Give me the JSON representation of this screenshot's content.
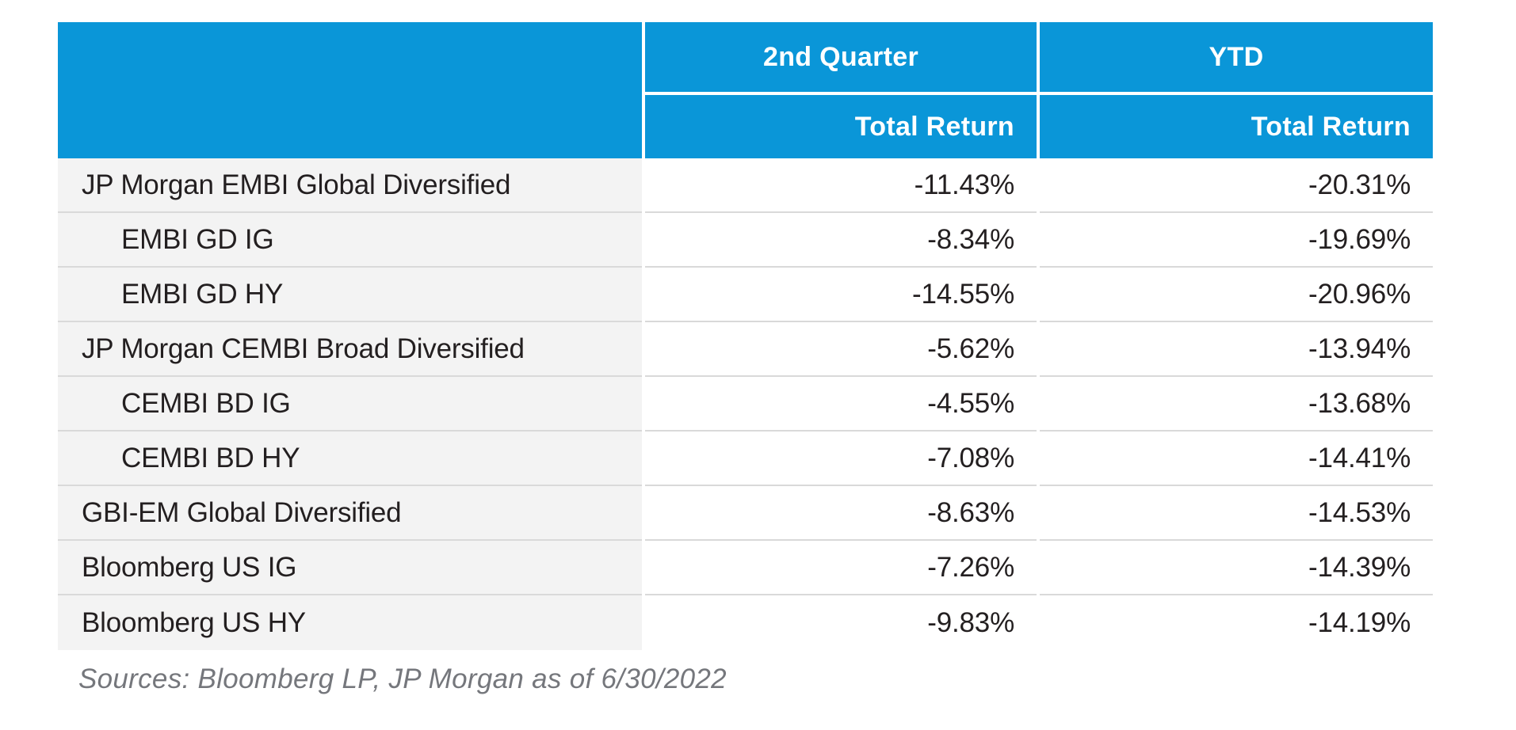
{
  "chart_data": {
    "type": "table",
    "column_groups": [
      "2nd Quarter",
      "YTD"
    ],
    "sub_headers": [
      "Total Return",
      "Total Return"
    ],
    "rows": [
      {
        "label": "JP Morgan EMBI Global Diversified",
        "indent": false,
        "q2_total_return": "-11.43%",
        "ytd_total_return": "-20.31%",
        "q2_value": -11.43,
        "ytd_value": -20.31
      },
      {
        "label": "EMBI GD IG",
        "indent": true,
        "q2_total_return": "-8.34%",
        "ytd_total_return": "-19.69%",
        "q2_value": -8.34,
        "ytd_value": -19.69
      },
      {
        "label": "EMBI GD HY",
        "indent": true,
        "q2_total_return": "-14.55%",
        "ytd_total_return": "-20.96%",
        "q2_value": -14.55,
        "ytd_value": -20.96
      },
      {
        "label": "JP Morgan CEMBI Broad Diversified",
        "indent": false,
        "q2_total_return": "-5.62%",
        "ytd_total_return": "-13.94%",
        "q2_value": -5.62,
        "ytd_value": -13.94
      },
      {
        "label": "CEMBI BD IG",
        "indent": true,
        "q2_total_return": "-4.55%",
        "ytd_total_return": "-13.68%",
        "q2_value": -4.55,
        "ytd_value": -13.68
      },
      {
        "label": "CEMBI BD HY",
        "indent": true,
        "q2_total_return": "-7.08%",
        "ytd_total_return": "-14.41%",
        "q2_value": -7.08,
        "ytd_value": -14.41
      },
      {
        "label": "GBI-EM Global Diversified",
        "indent": false,
        "q2_total_return": "-8.63%",
        "ytd_total_return": "-14.53%",
        "q2_value": -8.63,
        "ytd_value": -14.53
      },
      {
        "label": "Bloomberg US IG",
        "indent": false,
        "q2_total_return": "-7.26%",
        "ytd_total_return": "-14.39%",
        "q2_value": -7.26,
        "ytd_value": -14.39
      },
      {
        "label": "Bloomberg US HY",
        "indent": false,
        "q2_total_return": "-9.83%",
        "ytd_total_return": "-14.19%",
        "q2_value": -9.83,
        "ytd_value": -14.19
      }
    ],
    "source_note": "Sources: Bloomberg LP, JP Morgan as of 6/30/2022",
    "legend_position": "none",
    "grid": "horizontal-row-dividers"
  },
  "colors": {
    "header_blue": "#0a96d8",
    "row_gray": "#f3f3f3",
    "divider": "#d9d9d9",
    "text_dark": "#231f20",
    "source_gray": "#75777c"
  }
}
